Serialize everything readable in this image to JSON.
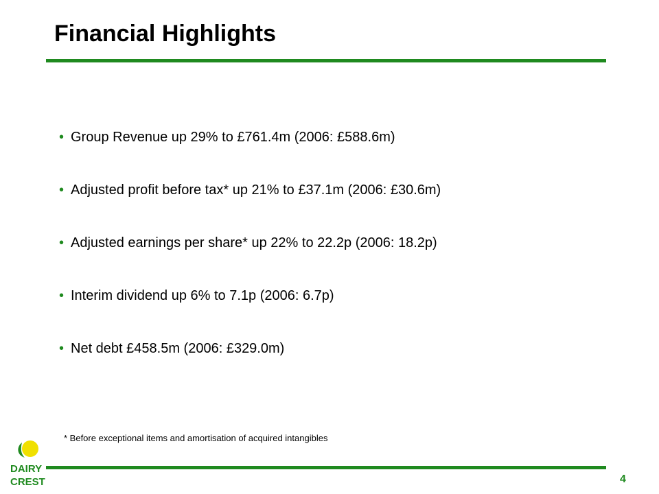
{
  "slide": {
    "title": "Financial Highlights",
    "bullets": [
      "Group Revenue up 29% to £761.4m (2006: £588.6m)",
      "Adjusted profit before tax* up 21% to £37.1m (2006: £30.6m)",
      "Adjusted earnings per share* up 22% to 22.2p (2006: 18.2p)",
      "Interim dividend up 6% to 7.1p (2006: 6.7p)",
      "Net debt £458.5m (2006: £329.0m)"
    ],
    "bullet_glyph": "•",
    "footnote": "* Before exceptional items and amortisation of acquired intangibles",
    "page_number": "4"
  },
  "logo": {
    "line1": "DAIRY",
    "line2": "CREST",
    "colors": {
      "green": "#1f8a1f",
      "yellow": "#f0e000"
    }
  },
  "colors": {
    "accent": "#1f8a1f",
    "text": "#000000"
  }
}
